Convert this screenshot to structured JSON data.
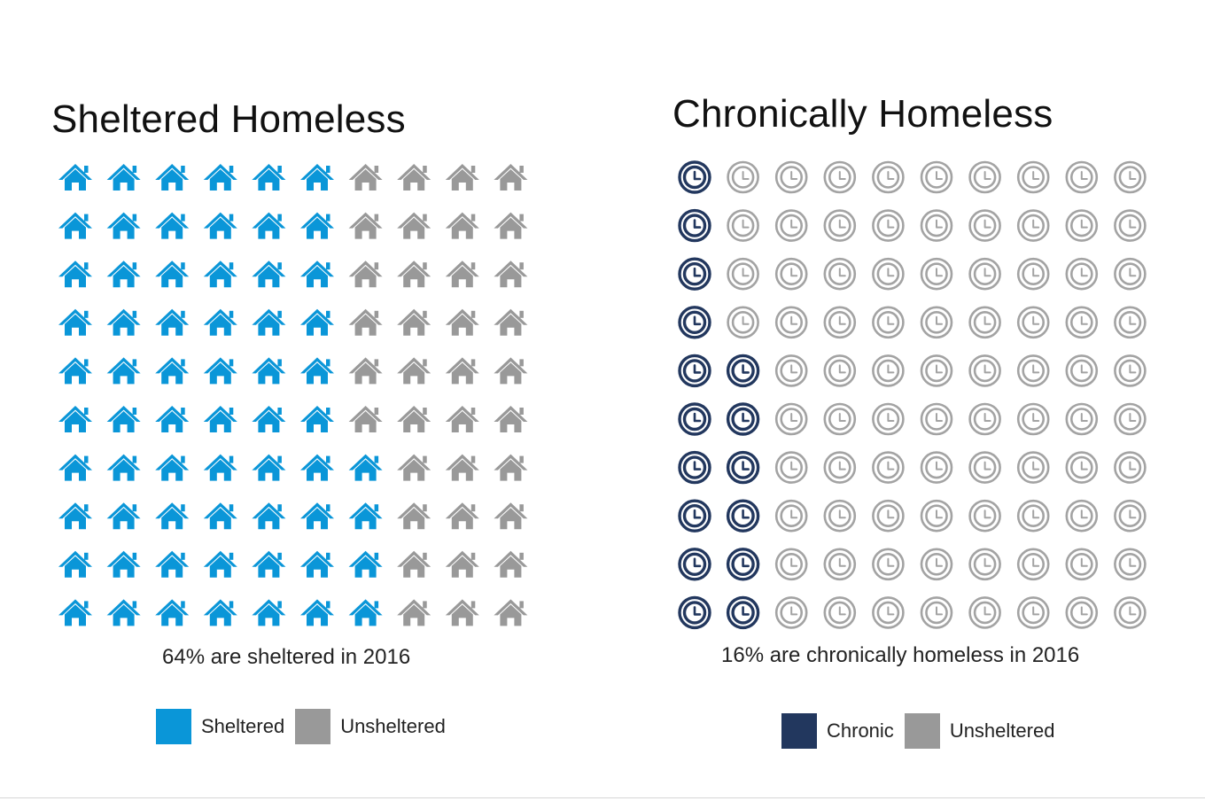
{
  "colors": {
    "sheltered": "#0a96d8",
    "chronic": "#22375e",
    "unsheltered": "#999999",
    "clock_gray": "#a3a3a3"
  },
  "chart_data": [
    {
      "type": "waffle",
      "title": "Sheltered Homeless",
      "icon": "house-icon",
      "grid": {
        "rows": 10,
        "columns": 10
      },
      "filled_per_row": [
        6,
        6,
        6,
        6,
        6,
        6,
        7,
        7,
        7,
        7
      ],
      "value_percent": 64,
      "caption": "64% are sheltered in 2016",
      "legend": [
        {
          "label": "Sheltered",
          "color": "#0a96d8"
        },
        {
          "label": "Unsheltered",
          "color": "#999999"
        }
      ]
    },
    {
      "type": "waffle",
      "title": "Chronically Homeless",
      "icon": "clock-icon",
      "grid": {
        "rows": 10,
        "columns": 10
      },
      "filled_per_row": [
        1,
        1,
        1,
        1,
        2,
        2,
        2,
        2,
        2,
        2
      ],
      "value_percent": 16,
      "caption": "16% are chronically homeless in 2016",
      "legend": [
        {
          "label": "Chronic",
          "color": "#22375e"
        },
        {
          "label": "Unsheltered",
          "color": "#999999"
        }
      ]
    }
  ]
}
